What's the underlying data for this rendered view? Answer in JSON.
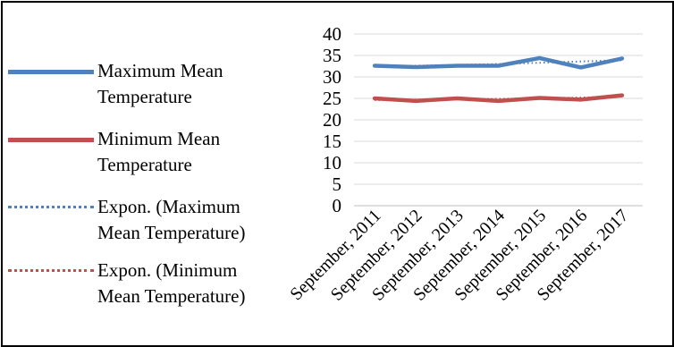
{
  "chart_data": {
    "type": "line",
    "categories": [
      "September, 2011",
      "September, 2012",
      "September, 2013",
      "September, 2014",
      "September, 2015",
      "September, 2016",
      "September, 2017"
    ],
    "series": [
      {
        "name": "Maximum Mean Temperature",
        "values": [
          32.6,
          32.3,
          32.6,
          32.6,
          34.4,
          32.2,
          34.3
        ],
        "color": "#4f81bd",
        "style": "solid"
      },
      {
        "name": "Minimum Mean Temperature",
        "values": [
          25.0,
          24.4,
          25.0,
          24.4,
          25.1,
          24.7,
          25.7
        ],
        "color": "#c0504d",
        "style": "solid"
      },
      {
        "name": "Expon. (Maximum Mean Temperature)",
        "values": [
          32.4,
          32.6,
          32.8,
          33.0,
          33.3,
          33.6,
          33.9
        ],
        "color": "#4f81bd",
        "style": "dotted"
      },
      {
        "name": "Expon. (Minimum Mean Temperature)",
        "values": [
          24.6,
          24.7,
          24.8,
          24.9,
          25.0,
          25.2,
          25.4
        ],
        "color": "#c0504d",
        "style": "dotted"
      }
    ],
    "ylim": [
      0,
      40
    ],
    "yticks": [
      0,
      5,
      10,
      15,
      20,
      25,
      30,
      35,
      40
    ],
    "grid": "horizontal",
    "legend_position": "left"
  },
  "legend": {
    "item1_line1": "Maximum Mean",
    "item1_line2": "Temperature",
    "item2_line1": "Minimum Mean",
    "item2_line2": "Temperature",
    "item3_line1": "Expon. (Maximum",
    "item3_line2": "Mean Temperature)",
    "item4_line1": "Expon. (Minimum",
    "item4_line2": "Mean Temperature)"
  }
}
